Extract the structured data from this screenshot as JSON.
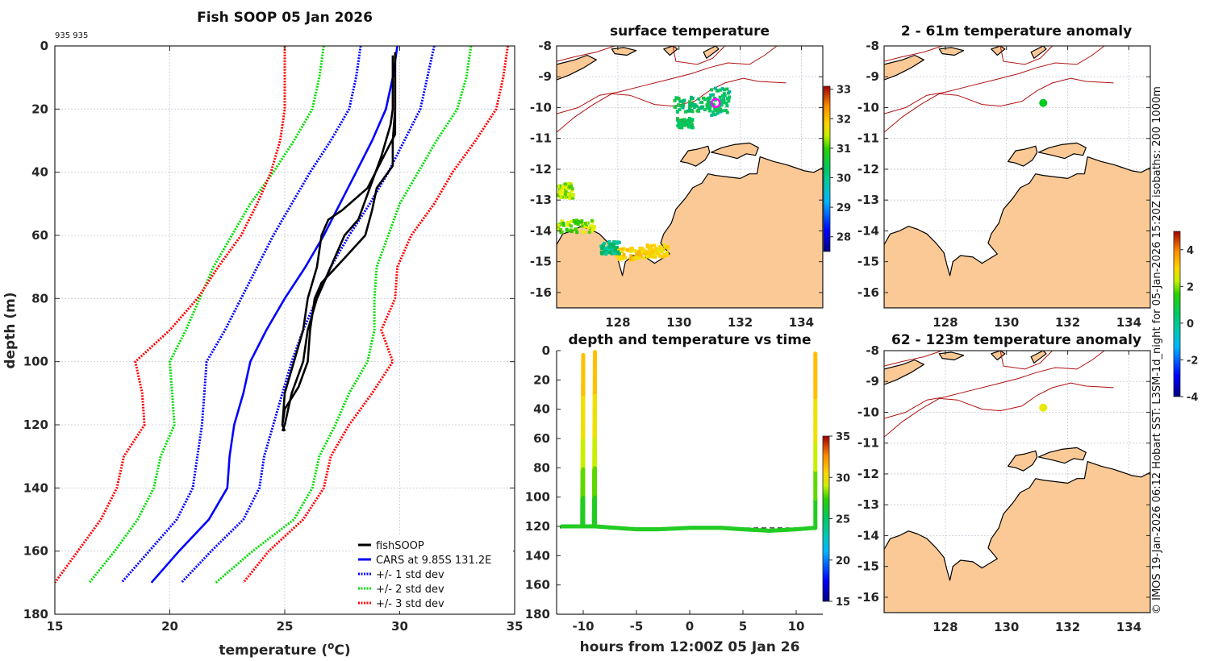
{
  "chart_data": [
    {
      "type": "line",
      "title": "Fish SOOP 05 Jan 2026",
      "annotation": "935 935",
      "xlabel": "temperature (°C)",
      "xlabel_main": "temperature (",
      "xlabel_sup": "o",
      "xlabel_end": "C)",
      "ylabel": "depth (m)",
      "xlim": [
        15,
        35
      ],
      "ylim": [
        0,
        180
      ],
      "y_reversed": true,
      "xticks": [
        15,
        20,
        25,
        30,
        35
      ],
      "yticks": [
        0,
        20,
        40,
        60,
        80,
        100,
        120,
        140,
        160,
        180
      ],
      "grid": true,
      "legend_position": "bottom-right",
      "legend": [
        {
          "label": "fishSOOP",
          "color": "#000000",
          "style": "solid"
        },
        {
          "label": "CARS at 9.85S 131.2E",
          "color": "#0000ff",
          "style": "solid"
        },
        {
          "label": "+/- 1 std dev",
          "color": "#0000ff",
          "style": "dotted"
        },
        {
          "label": "+/- 2 std dev",
          "color": "#00dd00",
          "style": "dotted"
        },
        {
          "label": "+/- 3 std dev",
          "color": "#ff0000",
          "style": "dotted"
        }
      ],
      "depth": [
        0,
        10,
        20,
        30,
        40,
        50,
        60,
        70,
        80,
        90,
        100,
        110,
        120,
        130,
        140,
        150,
        160,
        170
      ],
      "series": [
        {
          "name": "CARS",
          "color": "#0000ff",
          "style": "solid",
          "values": [
            29.9,
            29.7,
            29.4,
            28.8,
            28.1,
            27.4,
            26.7,
            25.9,
            25.0,
            24.2,
            23.5,
            23.2,
            22.8,
            22.6,
            22.5,
            21.7,
            20.4,
            19.2
          ]
        },
        {
          "name": "-1 std dev",
          "color": "#0000ff",
          "style": "dotted",
          "values": [
            28.3,
            28.1,
            27.8,
            27.0,
            26.1,
            25.3,
            24.5,
            23.8,
            23.1,
            22.4,
            21.6,
            21.5,
            21.4,
            21.2,
            21.0,
            20.3,
            19.1,
            17.9
          ]
        },
        {
          "name": "+1 std dev",
          "color": "#0000ff",
          "style": "dotted",
          "values": [
            31.5,
            31.2,
            30.9,
            30.2,
            29.5,
            28.7,
            27.8,
            27.0,
            26.4,
            25.8,
            25.3,
            24.9,
            24.5,
            24.1,
            23.9,
            23.2,
            21.8,
            20.5
          ]
        },
        {
          "name": "-2 std dev",
          "color": "#00dd00",
          "style": "dotted",
          "values": [
            26.7,
            26.5,
            26.2,
            25.4,
            24.5,
            23.5,
            22.7,
            21.9,
            21.3,
            20.7,
            20.0,
            20.1,
            20.2,
            19.6,
            19.3,
            18.6,
            17.6,
            16.5
          ]
        },
        {
          "name": "+2 std dev",
          "color": "#00dd00",
          "style": "dotted",
          "values": [
            33.1,
            32.9,
            32.5,
            31.6,
            30.8,
            30.0,
            29.5,
            29.0,
            28.9,
            28.9,
            28.6,
            27.8,
            27.2,
            26.5,
            26.2,
            25.4,
            23.6,
            22.0
          ]
        },
        {
          "name": "-3 std dev",
          "color": "#ff0000",
          "style": "dotted",
          "values": [
            25.0,
            25.0,
            25.0,
            24.8,
            24.4,
            23.8,
            23.1,
            22.1,
            21.2,
            20.0,
            18.5,
            18.8,
            18.9,
            18.0,
            17.7,
            17.0,
            16.0,
            15.0
          ]
        },
        {
          "name": "+3 std dev",
          "color": "#ff0000",
          "style": "dotted",
          "values": [
            34.7,
            34.5,
            34.2,
            33.3,
            32.3,
            31.5,
            30.5,
            29.9,
            29.8,
            29.2,
            29.7,
            28.8,
            27.8,
            27.0,
            26.7,
            25.8,
            24.3,
            23.2
          ]
        }
      ],
      "fishSOOP_profiles": [
        {
          "name": "fishSOOP cast 1",
          "depth": [
            2,
            10,
            20,
            28,
            35,
            45,
            52,
            55,
            60,
            70,
            80,
            90,
            100,
            105,
            110,
            120,
            122
          ],
          "values": [
            29.8,
            29.8,
            29.8,
            29.8,
            29.3,
            28.6,
            27.5,
            26.9,
            26.6,
            26.4,
            26.0,
            25.8,
            25.4,
            25.2,
            25.0,
            24.9,
            25.0
          ]
        },
        {
          "name": "fishSOOP cast 2",
          "depth": [
            3,
            10,
            20,
            25,
            35,
            45,
            55,
            60,
            70,
            80,
            90,
            100,
            110,
            120,
            122
          ],
          "values": [
            29.7,
            29.7,
            29.7,
            29.6,
            29.2,
            28.7,
            28.2,
            27.6,
            27.0,
            26.4,
            26.0,
            25.8,
            25.3,
            25.0,
            24.9
          ]
        },
        {
          "name": "fishSOOP cast 3",
          "depth": [
            3,
            10,
            20,
            30,
            38,
            45,
            52,
            60,
            68,
            75,
            80,
            90,
            100,
            108,
            115,
            120,
            122
          ],
          "values": [
            29.8,
            29.8,
            29.8,
            29.7,
            29.7,
            29.0,
            28.8,
            28.5,
            27.5,
            26.6,
            26.3,
            26.1,
            26.0,
            25.6,
            25.0,
            24.9,
            25.0
          ]
        }
      ]
    },
    {
      "type": "heatmap",
      "title": "surface temperature",
      "xticks": [
        128,
        130,
        132,
        134
      ],
      "yticks": [
        -8,
        -9,
        -10,
        -11,
        -12,
        -13,
        -14,
        -15,
        -16
      ],
      "xlim": [
        126.0,
        134.7
      ],
      "ylim": [
        -16.5,
        -8
      ],
      "colorbar": {
        "ticks": [
          28,
          29,
          30,
          31,
          32,
          33
        ],
        "range": [
          27.5,
          33.1
        ]
      },
      "marker": {
        "lon": 131.2,
        "lat": -9.85,
        "color": "#ff00ff",
        "shape": "circle-open"
      }
    },
    {
      "type": "heatmap",
      "title": "2 - 61m temperature anomaly",
      "xticks": [
        128,
        130,
        132,
        134
      ],
      "yticks": [
        -8,
        -9,
        -10,
        -11,
        -12,
        -13,
        -14,
        -15,
        -16
      ],
      "xlim": [
        126.0,
        134.7
      ],
      "ylim": [
        -16.5,
        -8
      ],
      "marker": {
        "lon": 131.2,
        "lat": -9.85,
        "color": "#00cc22",
        "anomaly": 0.0
      }
    },
    {
      "type": "heatmap",
      "title": "62 - 123m temperature anomaly",
      "xticks": [
        128,
        130,
        132,
        134
      ],
      "yticks": [
        -8,
        -9,
        -10,
        -11,
        -12,
        -13,
        -14,
        -15,
        -16
      ],
      "xlim": [
        126.0,
        134.7
      ],
      "ylim": [
        -16.5,
        -8
      ],
      "marker": {
        "lon": 131.2,
        "lat": -9.85,
        "color": "#e8e800",
        "anomaly": 2.0
      },
      "colorbar": {
        "ticks": [
          -4,
          -2,
          0,
          2,
          4
        ],
        "range": [
          -4,
          5
        ]
      }
    },
    {
      "type": "line",
      "title": "depth and temperature vs time",
      "xlabel": "hours from 12:00Z 05 Jan 26",
      "xlim": [
        -12.5,
        12.5
      ],
      "ylim": [
        0,
        180
      ],
      "y_reversed": true,
      "xticks": [
        -10,
        -5,
        0,
        5,
        10
      ],
      "yticks": [
        0,
        20,
        40,
        60,
        80,
        100,
        120,
        140,
        160,
        180
      ],
      "colorbar": {
        "ticks": [
          15,
          20,
          25,
          30,
          35
        ],
        "range": [
          15,
          35
        ]
      },
      "track": {
        "hours": [
          -12.0,
          -10.1,
          -10.1,
          -10.0,
          -10.0,
          -9.0,
          -8.9,
          -8.9,
          -5,
          -3,
          0,
          3,
          5,
          7.5,
          10,
          11.7,
          11.8,
          11.8
        ],
        "depth": [
          120,
          120,
          120,
          3,
          120,
          120,
          1,
          120,
          122,
          122,
          121,
          121,
          122,
          123,
          122,
          121,
          121,
          2
        ]
      },
      "bottom_line_depth": 121
    }
  ],
  "footer": {
    "vertical_note": "© IMOS 19-Jan-2026 06:12 Hobart SST: L3SM-1d_night for 05-Jan-2026 15:20Z isobaths: 200  1000m"
  },
  "colors": {
    "land": "#fbc995",
    "coast": "#000000",
    "isobath": "#b01010",
    "grid": "#c8c8d8",
    "axis": "#262626"
  }
}
